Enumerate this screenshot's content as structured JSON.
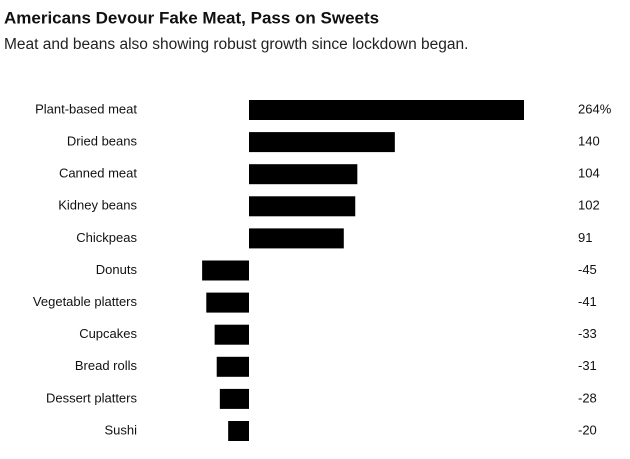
{
  "chart_data": {
    "type": "bar",
    "orientation": "horizontal",
    "title": "Americans Devour Fake Meat, Pass on Sweets",
    "subtitle": "Meat and beans also showing robust growth since lockdown began.",
    "categories": [
      "Plant-based meat",
      "Dried beans",
      "Canned meat",
      "Kidney beans",
      "Chickpeas",
      "Donuts",
      "Vegetable platters",
      "Cupcakes",
      "Bread rolls",
      "Dessert platters",
      "Sushi"
    ],
    "values": [
      264,
      140,
      104,
      102,
      91,
      -45,
      -41,
      -33,
      -31,
      -28,
      -20
    ],
    "value_labels": [
      "264%",
      "140",
      "104",
      "102",
      "91",
      "-45",
      "-41",
      "-33",
      "-31",
      "-28",
      "-20"
    ],
    "color": "#000000"
  }
}
